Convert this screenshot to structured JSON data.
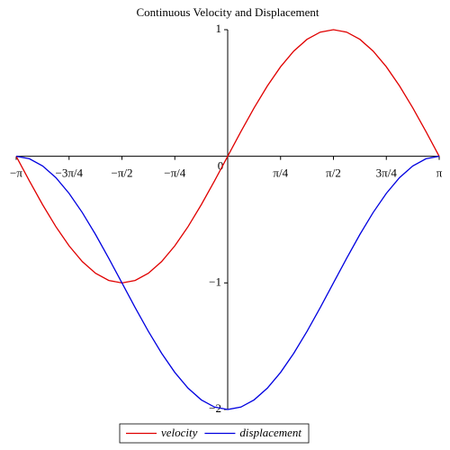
{
  "chart_data": {
    "type": "line",
    "title": "Continuous Velocity and Displacement",
    "x": [
      -3.1416,
      -2.9452,
      -2.7489,
      -2.5525,
      -2.3562,
      -2.1598,
      -1.9635,
      -1.7671,
      -1.5708,
      -1.3744,
      -1.1781,
      -0.9817,
      -0.7854,
      -0.589,
      -0.3927,
      -0.1963,
      0,
      0.1963,
      0.3927,
      0.589,
      0.7854,
      0.9817,
      1.1781,
      1.3744,
      1.5708,
      1.7671,
      1.9635,
      2.1598,
      2.3562,
      2.5525,
      2.7489,
      2.9452,
      3.1416
    ],
    "series": [
      {
        "name": "velocity",
        "color": "#e00000",
        "values": [
          0,
          -0.1951,
          -0.3827,
          -0.5556,
          -0.7071,
          -0.8315,
          -0.9239,
          -0.9808,
          -1,
          -0.9808,
          -0.9239,
          -0.8315,
          -0.7071,
          -0.5556,
          -0.3827,
          -0.1951,
          0,
          0.1951,
          0.3827,
          0.5556,
          0.7071,
          0.8315,
          0.9239,
          0.9808,
          1,
          0.9808,
          0.9239,
          0.8315,
          0.7071,
          0.5556,
          0.3827,
          0.1951,
          0
        ]
      },
      {
        "name": "displacement",
        "color": "#0000e0",
        "values": [
          0,
          -0.0192,
          -0.0761,
          -0.1685,
          -0.2929,
          -0.4444,
          -0.6173,
          -0.8049,
          -1,
          -1.1951,
          -1.3827,
          -1.5556,
          -1.7071,
          -1.8315,
          -1.9239,
          -1.9808,
          -2,
          -1.9808,
          -1.9239,
          -1.8315,
          -1.7071,
          -1.5556,
          -1.3827,
          -1.1951,
          -1,
          -0.8049,
          -0.6173,
          -0.4444,
          -0.2929,
          -0.1685,
          -0.0761,
          -0.0192,
          0
        ]
      }
    ],
    "xlim": [
      -3.1416,
      3.1416
    ],
    "xticks": [
      {
        "value": -3.1416,
        "label": "−π"
      },
      {
        "value": -2.3562,
        "label": "−3π/4"
      },
      {
        "value": -1.5708,
        "label": "−π/2"
      },
      {
        "value": -0.7854,
        "label": "−π/4"
      },
      0,
      {
        "value": 0.7854,
        "label": "π/4"
      },
      {
        "value": 1.5708,
        "label": "π/2"
      },
      {
        "value": 2.3562,
        "label": "3π/4"
      },
      {
        "value": 3.1416,
        "label": "π"
      }
    ],
    "ylim": [
      -2,
      1
    ],
    "yticks": [
      {
        "value": -2,
        "label": "−2"
      },
      {
        "value": -1,
        "label": "−1"
      },
      1
    ],
    "legend": "bottom"
  }
}
